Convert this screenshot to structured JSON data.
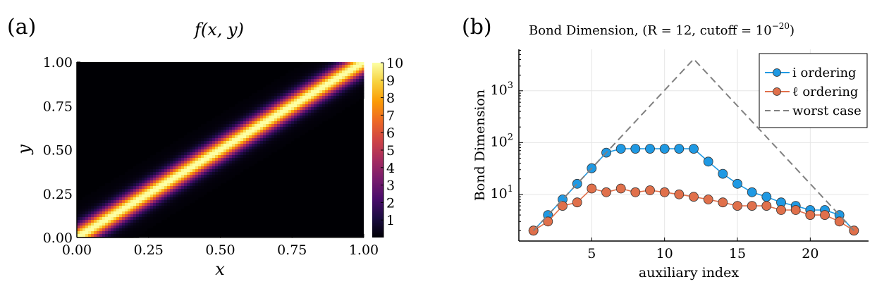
{
  "panel_a_label": "(a)",
  "panel_b_label": "(b)",
  "chart_data": [
    {
      "type": "heatmap",
      "title": "f(x, y)",
      "xlabel": "x",
      "ylabel": "y",
      "xlim": [
        0,
        1
      ],
      "ylim": [
        0,
        1
      ],
      "xticks": [
        "0.00",
        "0.25",
        "0.50",
        "0.75",
        "1.00"
      ],
      "yticks": [
        "0.00",
        "0.25",
        "0.50",
        "0.75",
        "1.00"
      ],
      "colorbar": {
        "range": [
          0,
          10
        ],
        "ticks": [
          "1",
          "2",
          "3",
          "4",
          "5",
          "6",
          "7",
          "8",
          "9",
          "10"
        ],
        "colormap": "inferno",
        "stops": [
          "#000004",
          "#1b0c41",
          "#4a0c6b",
          "#781c6d",
          "#a52c60",
          "#cf4446",
          "#ed6925",
          "#fb9b06",
          "#f7d13d",
          "#fcffa4"
        ]
      },
      "description": "Bright narrow ridge along the diagonal y = x, peak value about 10"
    },
    {
      "type": "line",
      "title": "Bond Dimension,   (R = 12,   cutoff = 10",
      "title_exponent": "−20",
      "title_close": ")",
      "xlabel": "auxiliary index",
      "ylabel": "Bond Dimension",
      "xlim": [
        0,
        24
      ],
      "ylim_log10": [
        0.1,
        3.8
      ],
      "yscale": "log",
      "xticks": [
        5,
        10,
        15,
        20
      ],
      "yticks": [
        {
          "base": "10",
          "exp": "1",
          "value": 10
        },
        {
          "base": "10",
          "exp": "2",
          "value": 100
        },
        {
          "base": "10",
          "exp": "3",
          "value": 1000
        }
      ],
      "x": [
        1,
        2,
        3,
        4,
        5,
        6,
        7,
        8,
        9,
        10,
        11,
        12,
        13,
        14,
        15,
        16,
        17,
        18,
        19,
        20,
        21,
        22,
        23
      ],
      "series": [
        {
          "name": "i ordering",
          "color": "#1f99e3",
          "marker": "circle",
          "values": [
            2,
            4,
            8,
            16,
            32,
            64,
            76,
            76,
            76,
            76,
            76,
            76,
            43,
            25,
            16,
            11,
            9,
            7,
            6,
            5,
            5,
            4,
            2
          ]
        },
        {
          "name": "ℓ ordering",
          "color": "#e0704b",
          "marker": "circle",
          "values": [
            2,
            3,
            6,
            7,
            13,
            11,
            13,
            11,
            12,
            11,
            10,
            9,
            8,
            7,
            6,
            6,
            6,
            5,
            5,
            4,
            4,
            3,
            2
          ]
        },
        {
          "name": "worst case",
          "color": "#808080",
          "style": "dashed",
          "x": [
            1,
            12,
            23
          ],
          "values": [
            2,
            4096,
            2
          ]
        }
      ],
      "legend_position": "top-right",
      "grid": true
    }
  ]
}
